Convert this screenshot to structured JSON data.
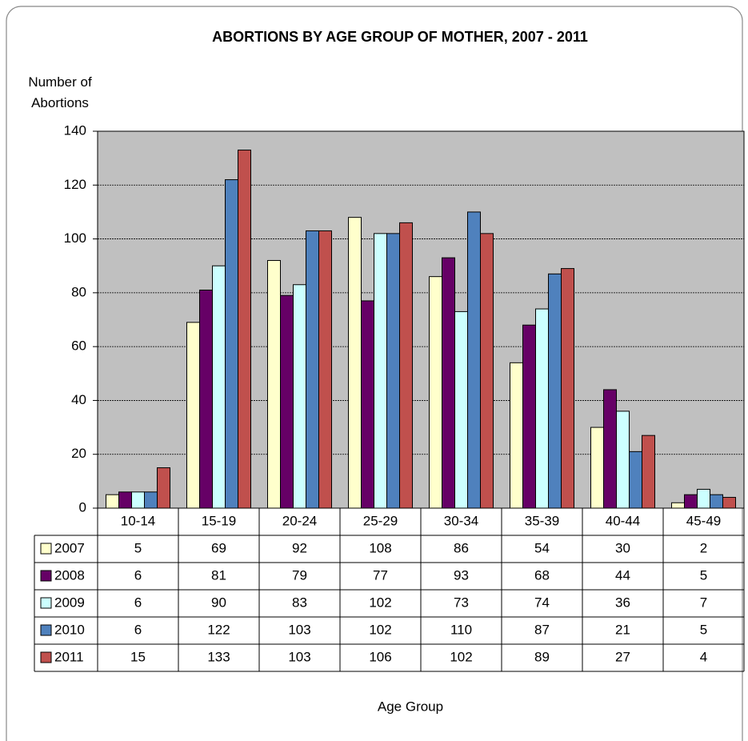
{
  "chart_data": {
    "type": "bar",
    "title": "ABORTIONS BY AGE GROUP OF MOTHER, 2007 - 2011",
    "y_label": "Number of Abortions",
    "x_label": "Age Group",
    "categories": [
      "10-14",
      "15-19",
      "20-24",
      "25-29",
      "30-34",
      "35-39",
      "40-44",
      "45-49"
    ],
    "series": [
      {
        "name": "2007",
        "color": "#ffffcc",
        "values": [
          5,
          69,
          92,
          108,
          86,
          54,
          30,
          2
        ]
      },
      {
        "name": "2008",
        "color": "#660066",
        "values": [
          6,
          81,
          79,
          77,
          93,
          68,
          44,
          5
        ]
      },
      {
        "name": "2009",
        "color": "#ccffff",
        "values": [
          6,
          90,
          83,
          102,
          73,
          74,
          36,
          7
        ]
      },
      {
        "name": "2010",
        "color": "#4f81bd",
        "values": [
          6,
          122,
          103,
          102,
          110,
          87,
          21,
          5
        ]
      },
      {
        "name": "2011",
        "color": "#c0504d",
        "values": [
          15,
          133,
          103,
          106,
          102,
          89,
          27,
          4
        ]
      }
    ],
    "ylim": [
      0,
      140
    ],
    "yticks": [
      0,
      20,
      40,
      60,
      80,
      100,
      120,
      140
    ],
    "grid": true,
    "plot_background": "#c0c0c0"
  }
}
